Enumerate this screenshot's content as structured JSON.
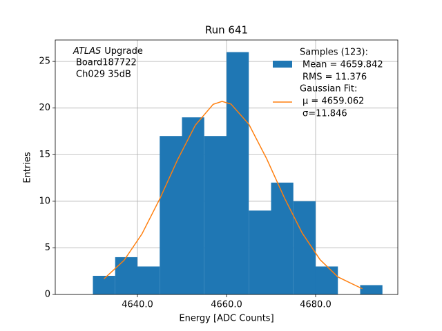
{
  "chart_data": {
    "type": "histogram",
    "title": "Run 641",
    "xlabel": "Energy [ADC Counts]",
    "ylabel": "Entries",
    "annotations": [
      "ATLAS",
      "Upgrade",
      "Board187722",
      "Ch029 35dB"
    ],
    "bins": [
      4630,
      4635,
      4640,
      4645,
      4650,
      4655,
      4660,
      4665,
      4670,
      4675,
      4680,
      4685,
      4690,
      4695
    ],
    "series": [
      {
        "name": "Samples (123):",
        "lines": [
          "Mean = 4659.842",
          "RMS = 11.376"
        ],
        "color": "#1f77b4",
        "values": [
          2,
          4,
          3,
          17,
          19,
          17,
          26,
          9,
          12,
          10,
          3,
          0,
          1
        ]
      },
      {
        "name": "Gaussian Fit:",
        "lines": [
          "μ = 4659.062",
          "σ=11.846"
        ],
        "color": "#ff7f0e",
        "type": "line",
        "x": [
          4632.5,
          4637,
          4641,
          4645,
          4649,
          4653,
          4657,
          4659,
          4661,
          4665,
          4669,
          4673,
          4677,
          4681,
          4685,
          4690.5
        ],
        "values": [
          1.68,
          3.66,
          6.48,
          10.24,
          14.44,
          18.16,
          20.4,
          20.71,
          20.43,
          18.27,
          14.57,
          10.36,
          6.58,
          3.73,
          1.88,
          0.61
        ]
      }
    ],
    "xlim": [
      4621.55,
      4698.45
    ],
    "ylim": [
      0,
      27.3
    ],
    "xticks": [
      {
        "value": 4640,
        "label": "4640.0"
      },
      {
        "value": 4660,
        "label": "4660.0"
      },
      {
        "value": 4680,
        "label": "4680.0"
      }
    ],
    "yticks": [
      0,
      5,
      10,
      15,
      20,
      25
    ],
    "grid": true,
    "legend": "upper right"
  }
}
